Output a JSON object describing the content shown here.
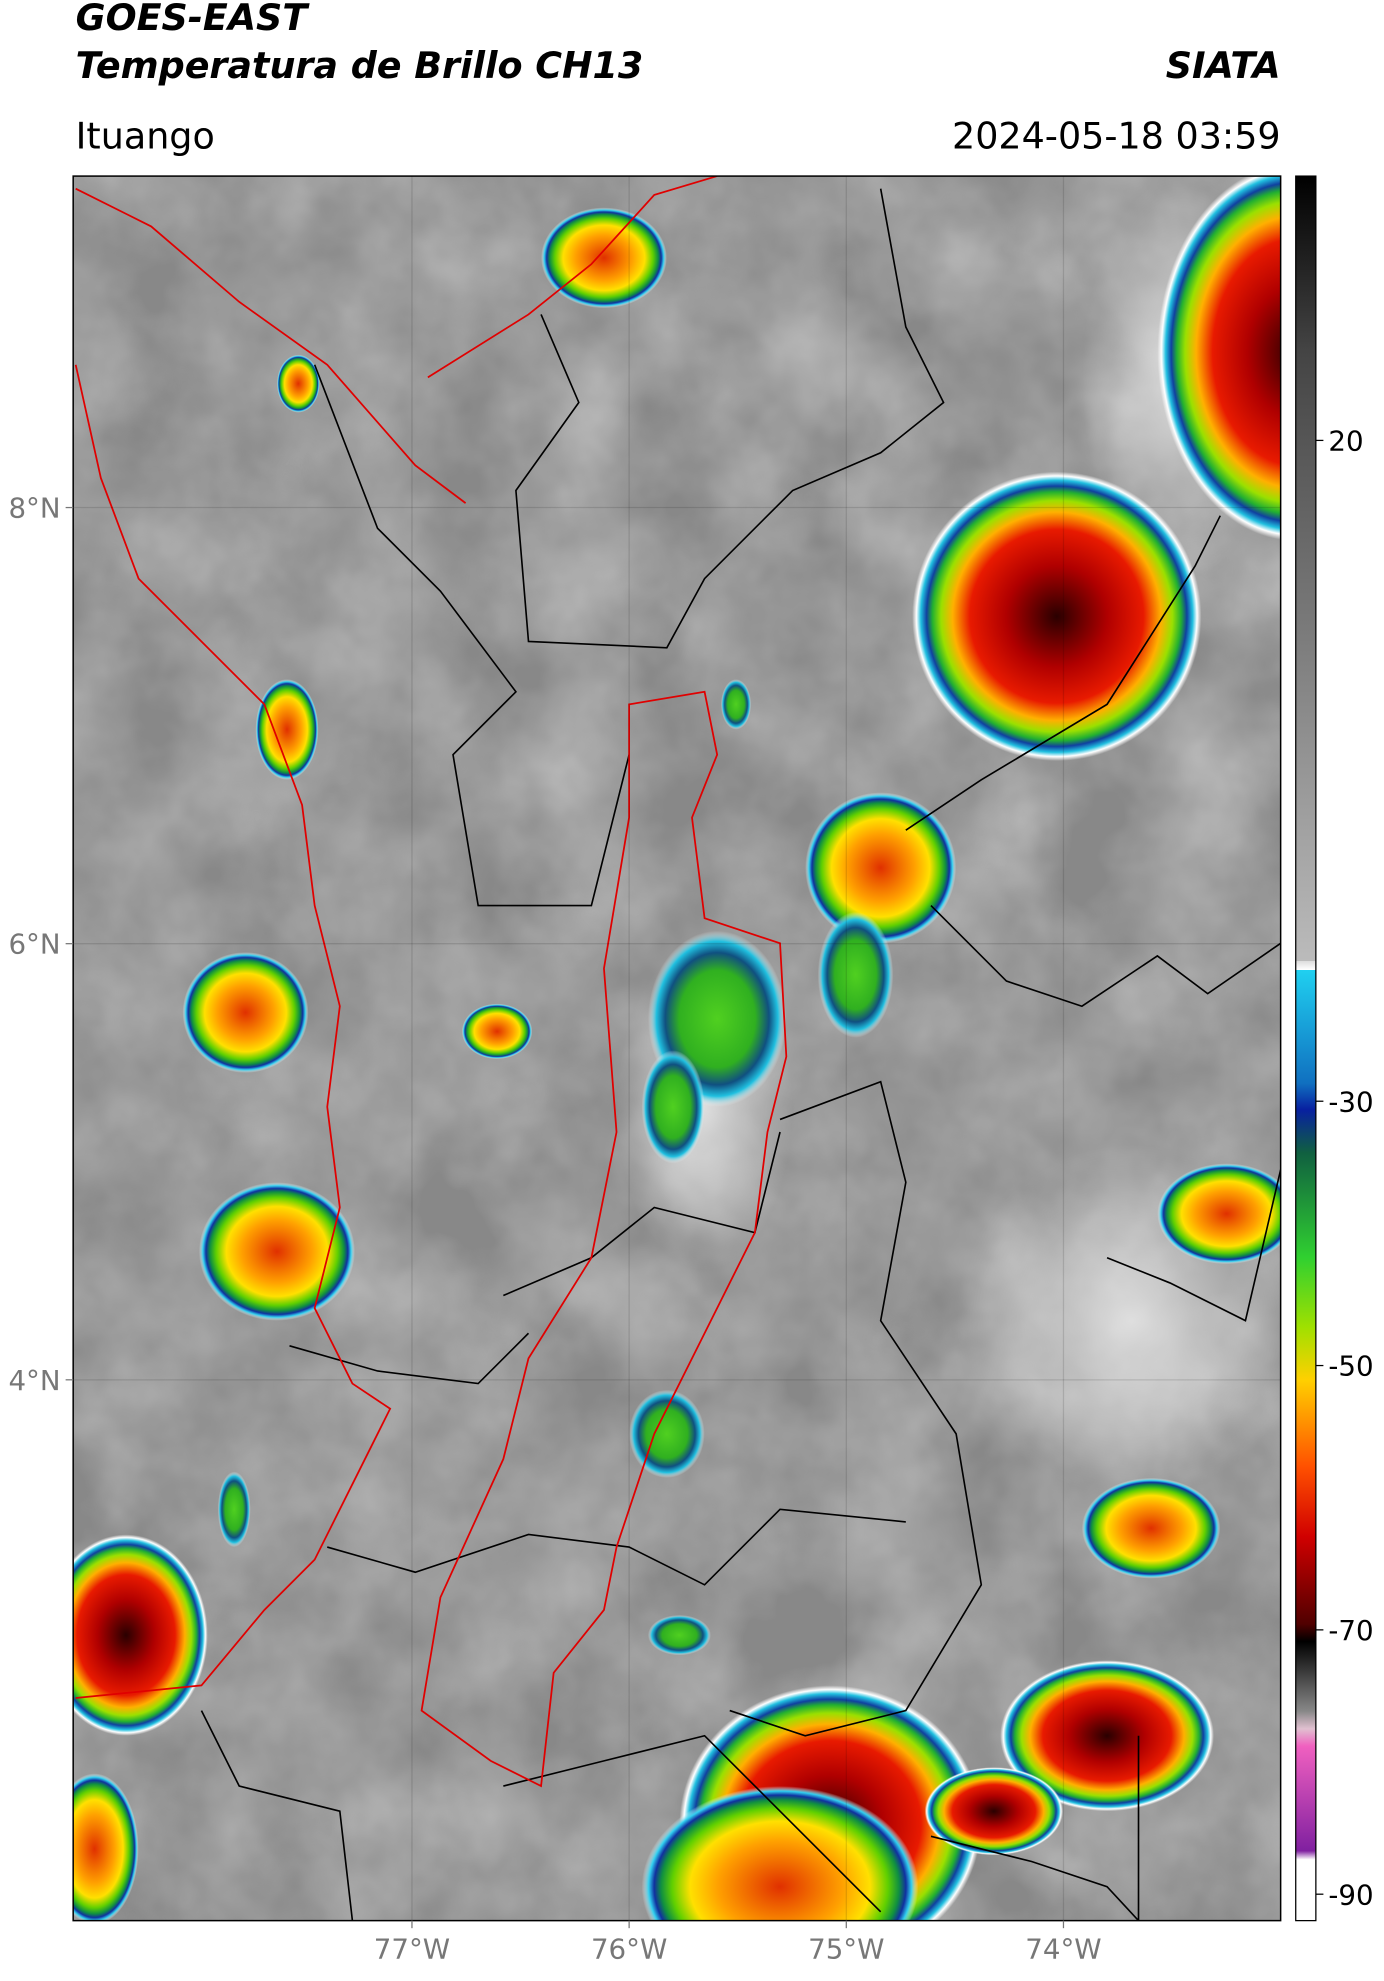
{
  "header": {
    "title": "GOES-EAST",
    "subtitle": "Temperatura de Brillo CH13",
    "brand": "SIATA",
    "region": "Ituango",
    "datetime": "2024-05-18 03:59"
  },
  "map": {
    "xlim": [
      -78.56,
      -73.0
    ],
    "ylim": [
      1.52,
      9.52
    ],
    "xticks": [
      {
        "value": -77,
        "label": "77°W"
      },
      {
        "value": -76,
        "label": "76°W"
      },
      {
        "value": -75,
        "label": "75°W"
      },
      {
        "value": -74,
        "label": "74°W"
      }
    ],
    "yticks": [
      {
        "value": 8,
        "label": "8°N"
      },
      {
        "value": 6,
        "label": "6°N"
      },
      {
        "value": 4,
        "label": "4°N"
      }
    ]
  },
  "colorbar": {
    "range": [
      -92,
      40
    ],
    "ticks": [
      20,
      -30,
      -50,
      -70,
      -90
    ]
  }
}
